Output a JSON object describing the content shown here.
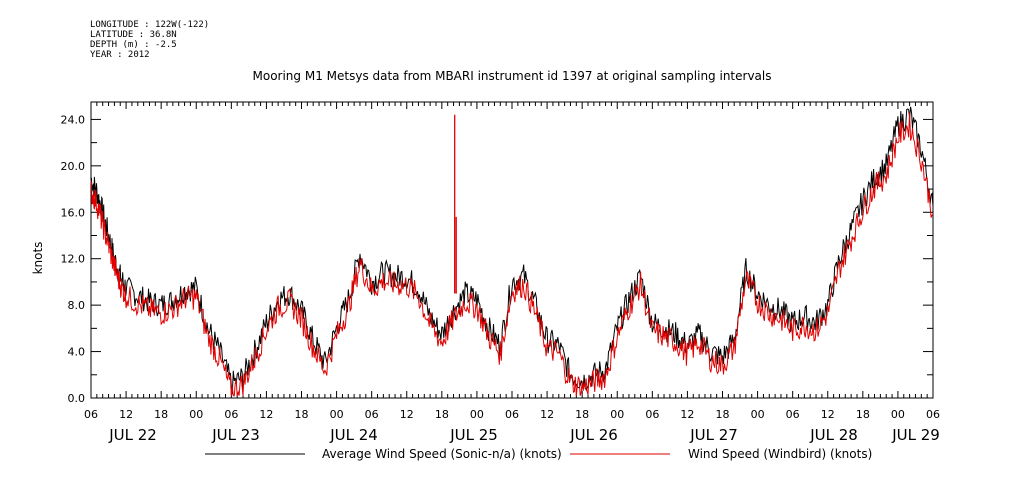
{
  "header": {
    "meta": [
      "LONGITUDE : 122W(-122)",
      "LATITUDE : 36.8N",
      "DEPTH (m) : -2.5",
      "YEAR : 2012"
    ]
  },
  "chart_data": {
    "type": "line",
    "title": "Mooring M1 Metsys data from MBARI instrument id 1397 at original sampling intervals",
    "ylabel": "knots",
    "xlabel": "",
    "ylim": [
      0,
      25.5
    ],
    "y_ticks": [
      0.0,
      4.0,
      8.0,
      12.0,
      16.0,
      20.0,
      24.0
    ],
    "y_tick_labels": [
      "0.0",
      "4.0",
      "8.0",
      "12.0",
      "16.0",
      "20.0",
      "24.0"
    ],
    "x_unit": "hours since JUL 22 00:00",
    "xlim": [
      6,
      150
    ],
    "hour_ticks": [
      6,
      12,
      18,
      24,
      30,
      36,
      42,
      48,
      54,
      60,
      66,
      72,
      78,
      84,
      90,
      96,
      102,
      108,
      114,
      120,
      126,
      132,
      138,
      144,
      150
    ],
    "hour_tick_labels": [
      "06",
      "12",
      "18",
      "00",
      "06",
      "12",
      "18",
      "00",
      "06",
      "12",
      "18",
      "00",
      "06",
      "12",
      "18",
      "00",
      "06",
      "12",
      "18",
      "00",
      "06",
      "12",
      "18",
      "00",
      "06"
    ],
    "day_labels": [
      {
        "hour": 12,
        "label": "JUL 22"
      },
      {
        "hour": 36,
        "label": "JUL 23"
      },
      {
        "hour": 60,
        "label": "JUL 24"
      },
      {
        "hour": 84,
        "label": "JUL 25"
      },
      {
        "hour": 108,
        "label": "JUL 26"
      },
      {
        "hour": 132,
        "label": "JUL 27"
      },
      {
        "hour": 156,
        "label": "JUL 28"
      },
      {
        "hour": 168,
        "label": "JUL 29"
      }
    ],
    "grid": false,
    "legend_position": "bottom",
    "series": [
      {
        "name": "Average Wind Speed (Sonic-n/a) (knots)",
        "color": "#000000",
        "x": [
          6,
          7,
          8,
          9,
          10,
          11,
          12,
          14,
          16,
          18,
          20,
          22,
          24,
          26,
          28,
          30,
          32,
          34,
          36,
          38,
          40,
          42,
          44,
          46,
          48,
          50,
          52,
          54,
          56,
          58,
          60,
          62,
          64,
          66,
          68,
          70,
          72,
          74,
          76,
          78,
          80,
          82,
          84,
          86,
          88,
          90,
          92,
          94,
          96,
          98,
          100,
          102,
          104,
          106,
          108,
          110,
          112,
          114,
          116,
          118,
          120,
          122,
          124,
          126,
          128,
          130,
          132,
          134,
          136,
          138,
          140,
          142,
          144,
          146,
          148,
          150
        ],
        "y": [
          18.8,
          17.8,
          16.0,
          14.0,
          12.0,
          10.5,
          9.5,
          8.8,
          8.3,
          8.0,
          8.4,
          9.3,
          9.5,
          6.0,
          4.0,
          1.2,
          1.8,
          4.0,
          6.5,
          8.5,
          9.0,
          7.5,
          5.0,
          3.0,
          6.0,
          8.5,
          12.5,
          10.0,
          10.8,
          10.5,
          10.4,
          9.5,
          7.0,
          5.5,
          7.5,
          9.0,
          8.5,
          6.0,
          4.5,
          10.0,
          10.5,
          8.0,
          5.0,
          4.5,
          2.0,
          1.5,
          2.0,
          2.5,
          6.0,
          8.5,
          10.5,
          6.5,
          6.0,
          5.5,
          4.5,
          5.5,
          4.0,
          3.5,
          5.0,
          11.0,
          9.0,
          8.0,
          7.5,
          6.5,
          7.0,
          6.5,
          8.0,
          12.0,
          14.5,
          17.0,
          19.0,
          20.0,
          23.5,
          24.5,
          21.5,
          16.5
        ]
      },
      {
        "name": "Wind Speed (Windbird) (knots)",
        "color": "#e00000",
        "x": [
          6,
          7,
          8,
          9,
          10,
          11,
          12,
          14,
          16,
          18,
          20,
          22,
          24,
          26,
          28,
          30,
          32,
          34,
          36,
          38,
          40,
          42,
          44,
          46,
          48,
          50,
          52,
          54,
          56,
          58,
          60,
          62,
          64,
          66,
          68,
          70,
          72,
          74,
          76,
          78,
          80,
          82,
          84,
          86,
          88,
          90,
          92,
          94,
          96,
          98,
          100,
          102,
          104,
          106,
          108,
          110,
          112,
          114,
          116,
          118,
          120,
          122,
          124,
          126,
          128,
          130,
          132,
          134,
          136,
          138,
          140,
          142,
          144,
          146,
          148,
          150
        ],
        "y": [
          17.8,
          16.8,
          15.0,
          13.2,
          11.3,
          9.8,
          8.8,
          8.1,
          7.6,
          7.3,
          7.7,
          8.6,
          8.7,
          5.3,
          3.3,
          0.6,
          1.2,
          3.4,
          5.9,
          7.8,
          8.3,
          6.8,
          4.4,
          2.4,
          5.4,
          7.8,
          11.6,
          9.3,
          10.1,
          9.8,
          9.7,
          8.8,
          6.3,
          4.8,
          6.8,
          8.3,
          7.8,
          5.3,
          3.8,
          9.2,
          9.8,
          7.3,
          4.3,
          3.8,
          1.4,
          0.9,
          1.4,
          1.9,
          5.3,
          7.8,
          9.8,
          5.8,
          5.3,
          4.8,
          3.8,
          4.8,
          3.3,
          2.8,
          4.3,
          10.3,
          8.3,
          7.3,
          6.8,
          5.8,
          6.3,
          5.8,
          7.3,
          11.2,
          13.7,
          16.2,
          18.2,
          19.2,
          22.5,
          23.5,
          20.6,
          15.8
        ]
      }
    ],
    "annotations": [
      {
        "series": 1,
        "type": "spike",
        "x": 68.2,
        "y": 24.4
      }
    ]
  }
}
